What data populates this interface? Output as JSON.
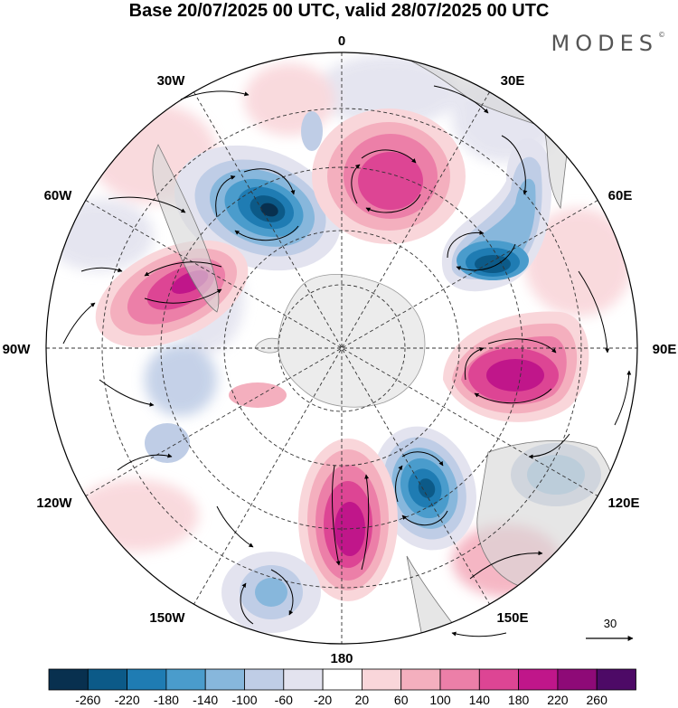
{
  "header": {
    "title": "Base 20/07/2025 00 UTC, valid 28/07/2025 00 UTC",
    "brand": "MODES",
    "brand_mark": "©"
  },
  "map": {
    "projection": "south-polar-stereographic",
    "lon_labels": {
      "n": "0",
      "nne": "30E",
      "ene": "60E",
      "e": "90E",
      "ese": "120E",
      "sse": "150E",
      "s": "180",
      "ssw": "150W",
      "wsw": "120W",
      "w": "90W",
      "wnw": "60W",
      "nnw": "30W"
    },
    "anomalies": [
      {
        "name": "low-60W-south-atlantic",
        "sign": "negative",
        "level": -220
      },
      {
        "name": "high-0E",
        "sign": "positive",
        "level": 160
      },
      {
        "name": "low-60E-indian",
        "sign": "negative",
        "level": -180
      },
      {
        "name": "high-90E",
        "sign": "positive",
        "level": 200
      },
      {
        "name": "low-130E",
        "sign": "negative",
        "level": -180
      },
      {
        "name": "high-165E",
        "sign": "positive",
        "level": 200
      },
      {
        "name": "high-75W",
        "sign": "positive",
        "level": 180
      },
      {
        "name": "low-140W",
        "sign": "negative",
        "level": -80
      },
      {
        "name": "low-110E",
        "sign": "negative",
        "level": -100
      }
    ],
    "vector_reference": {
      "value": "30"
    }
  },
  "colorbar": {
    "colors": [
      "#08304f",
      "#0c5a88",
      "#1f7cb3",
      "#4a9ccc",
      "#87b7dc",
      "#bfcde6",
      "#e3e3ef",
      "#ffffff",
      "#f9d6da",
      "#f4afbe",
      "#ec7fa8",
      "#dd4594",
      "#c0168a",
      "#8e0a77",
      "#4d0a66"
    ],
    "ticks": [
      "-260",
      "-220",
      "-180",
      "-140",
      "-100",
      "-60",
      "-20",
      "20",
      "60",
      "100",
      "140",
      "180",
      "220",
      "260"
    ]
  }
}
